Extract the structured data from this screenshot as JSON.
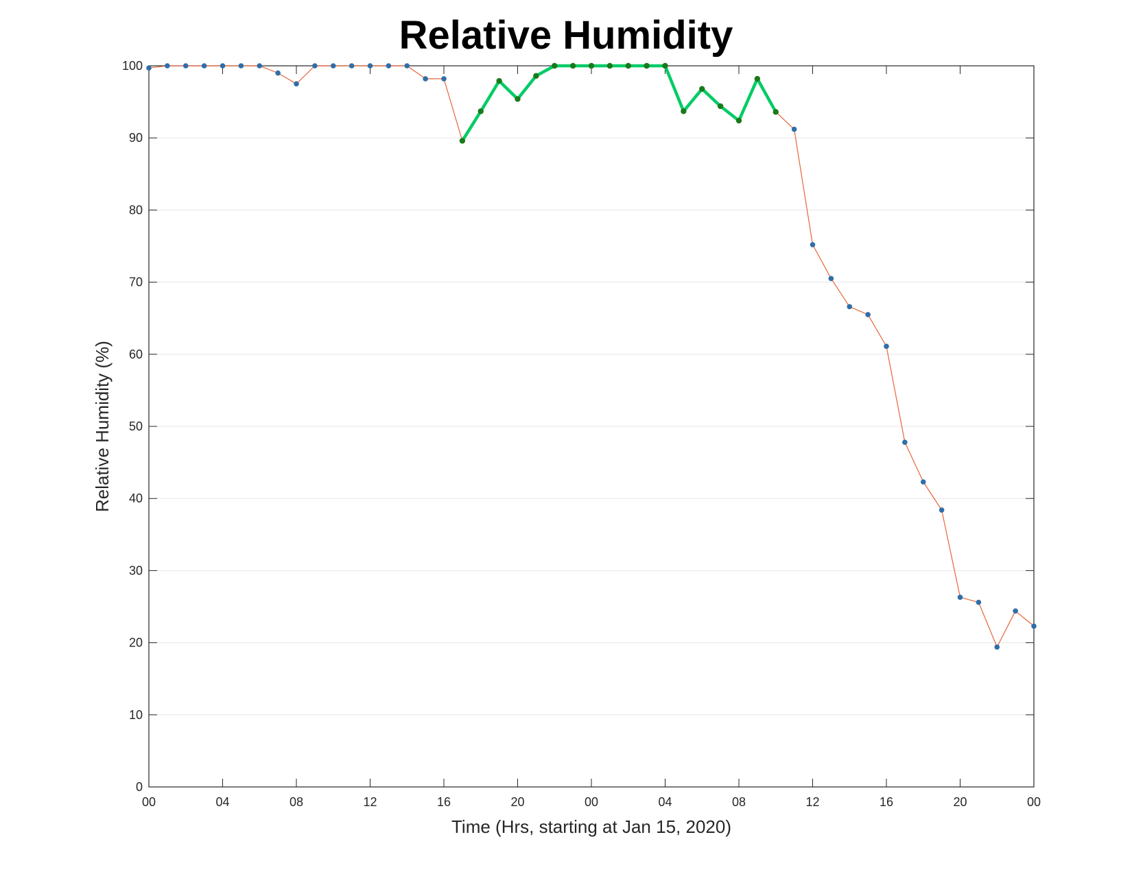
{
  "chart_data": {
    "type": "line",
    "title": "Relative Humidity",
    "xlabel": "Time (Hrs, starting at Jan 15, 2020)",
    "ylabel": "Relative Humidity (%)",
    "x_unit": "hours",
    "ylim": [
      0,
      100
    ],
    "xlim": [
      0,
      48
    ],
    "yticks": [
      0,
      10,
      20,
      30,
      40,
      50,
      60,
      70,
      80,
      90,
      100
    ],
    "xticks": [
      {
        "x": 0,
        "label": "00"
      },
      {
        "x": 4,
        "label": "04"
      },
      {
        "x": 8,
        "label": "08"
      },
      {
        "x": 12,
        "label": "12"
      },
      {
        "x": 16,
        "label": "16"
      },
      {
        "x": 20,
        "label": "20"
      },
      {
        "x": 24,
        "label": "00"
      },
      {
        "x": 28,
        "label": "04"
      },
      {
        "x": 32,
        "label": "08"
      },
      {
        "x": 36,
        "label": "12"
      },
      {
        "x": 40,
        "label": "16"
      },
      {
        "x": 44,
        "label": "20"
      },
      {
        "x": 48,
        "label": "00"
      }
    ],
    "grid": "horizontal",
    "series": [
      {
        "color": "#e8643a",
        "marker_color": "#2f6ea8",
        "x": [
          0,
          1,
          2,
          3,
          4,
          5,
          6,
          7,
          8,
          9,
          10,
          11,
          12,
          13,
          14,
          15,
          16,
          17,
          18,
          19,
          20,
          21,
          22,
          23,
          24,
          25,
          26,
          27,
          28,
          29,
          30,
          31,
          32,
          33,
          34,
          35,
          36,
          37,
          38,
          39,
          40,
          41,
          42,
          43,
          44,
          45,
          46,
          47,
          48
        ],
        "values": [
          99.7,
          100,
          100,
          100,
          100,
          100,
          100,
          99,
          97.5,
          100,
          100,
          100,
          100,
          100,
          100,
          98.2,
          98.2,
          89.6,
          93.7,
          97.9,
          95.4,
          98.6,
          100,
          100,
          100,
          100,
          100,
          100,
          100,
          93.7,
          96.8,
          94.4,
          92.4,
          98.2,
          93.6,
          91.2,
          75.2,
          70.5,
          66.6,
          65.5,
          61.1,
          47.8,
          42.3,
          38.4,
          26.3,
          25.6,
          19.4,
          24.4,
          22.3
        ]
      },
      {
        "color": "#00cc66",
        "marker_color": "#1a7a1a",
        "x": [
          17,
          18,
          19,
          20,
          21,
          22,
          23,
          24,
          25,
          26,
          27,
          28,
          29,
          30,
          31,
          32,
          33,
          34
        ],
        "values": [
          89.6,
          93.7,
          97.9,
          95.4,
          98.6,
          100,
          100,
          100,
          100,
          100,
          100,
          100,
          93.7,
          96.8,
          94.4,
          92.4,
          98.2,
          93.6
        ]
      }
    ]
  }
}
